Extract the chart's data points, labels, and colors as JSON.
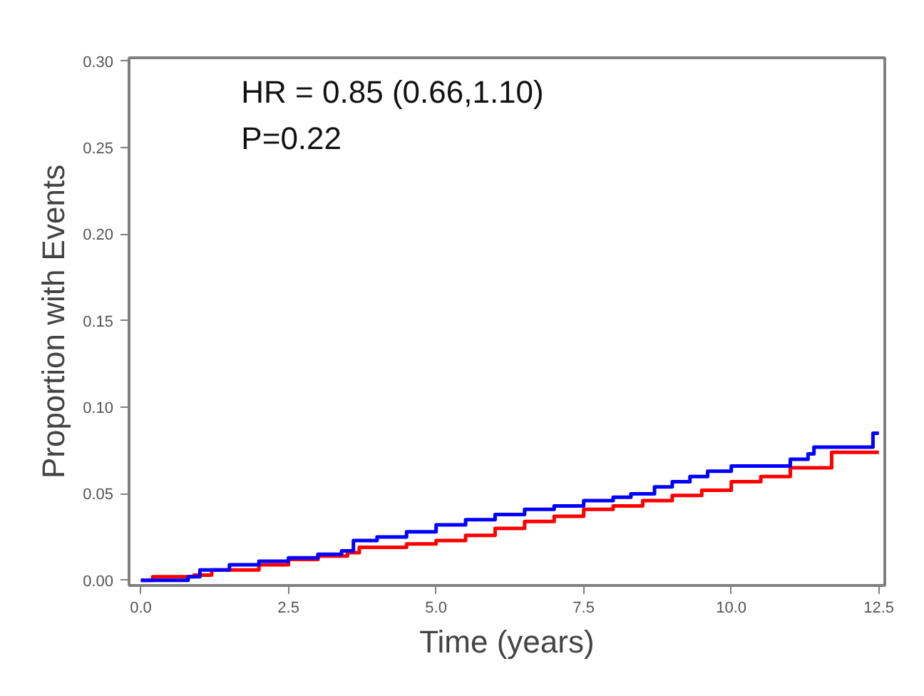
{
  "chart_data": {
    "type": "step",
    "xlabel": "Time (years)",
    "ylabel": "Proportion with Events",
    "annotations": [
      "HR = 0.85 (0.66,1.10)",
      "P=0.22"
    ],
    "xlim": [
      -0.2,
      12.6
    ],
    "ylim": [
      -0.003,
      0.302
    ],
    "xticks": [
      {
        "value": 0,
        "label": "0.0"
      },
      {
        "value": 2.5,
        "label": "2.5"
      },
      {
        "value": 5,
        "label": "5.0"
      },
      {
        "value": 7.5,
        "label": "7.5"
      },
      {
        "value": 10,
        "label": "10.0"
      },
      {
        "value": 12.5,
        "label": "12.5"
      }
    ],
    "yticks": [
      {
        "value": 0,
        "label": "0.00"
      },
      {
        "value": 0.05,
        "label": "0.05"
      },
      {
        "value": 0.1,
        "label": "0.10"
      },
      {
        "value": 0.15,
        "label": "0.15"
      },
      {
        "value": 0.2,
        "label": "0.20"
      },
      {
        "value": 0.25,
        "label": "0.25"
      },
      {
        "value": 0.3,
        "label": "0.30"
      }
    ],
    "series": [
      {
        "color": "#ff0000",
        "x": [
          0,
          0.2,
          0.9,
          1.2,
          2.0,
          2.5,
          3.0,
          3.5,
          3.7,
          4.5,
          5.0,
          5.5,
          6.0,
          6.5,
          7.0,
          7.5,
          8.0,
          8.5,
          9.0,
          9.5,
          10.0,
          10.5,
          11.0,
          11.7,
          12.5
        ],
        "values": [
          0,
          0.002,
          0.003,
          0.006,
          0.009,
          0.012,
          0.014,
          0.016,
          0.019,
          0.021,
          0.023,
          0.026,
          0.03,
          0.034,
          0.037,
          0.041,
          0.043,
          0.046,
          0.049,
          0.052,
          0.057,
          0.06,
          0.065,
          0.074,
          0.074
        ]
      },
      {
        "color": "#0000ff",
        "x": [
          0,
          0.8,
          1.0,
          1.5,
          2.0,
          2.5,
          3.0,
          3.4,
          3.6,
          4.0,
          4.5,
          5.0,
          5.5,
          6.0,
          6.5,
          7.0,
          7.5,
          8.0,
          8.3,
          8.7,
          9.0,
          9.3,
          9.6,
          10.0,
          11.0,
          11.3,
          11.4,
          12.4,
          12.5
        ],
        "values": [
          0,
          0.002,
          0.006,
          0.009,
          0.011,
          0.013,
          0.015,
          0.017,
          0.023,
          0.025,
          0.028,
          0.032,
          0.035,
          0.038,
          0.041,
          0.043,
          0.046,
          0.048,
          0.05,
          0.054,
          0.057,
          0.06,
          0.063,
          0.066,
          0.07,
          0.073,
          0.077,
          0.085,
          0.085
        ]
      }
    ]
  }
}
